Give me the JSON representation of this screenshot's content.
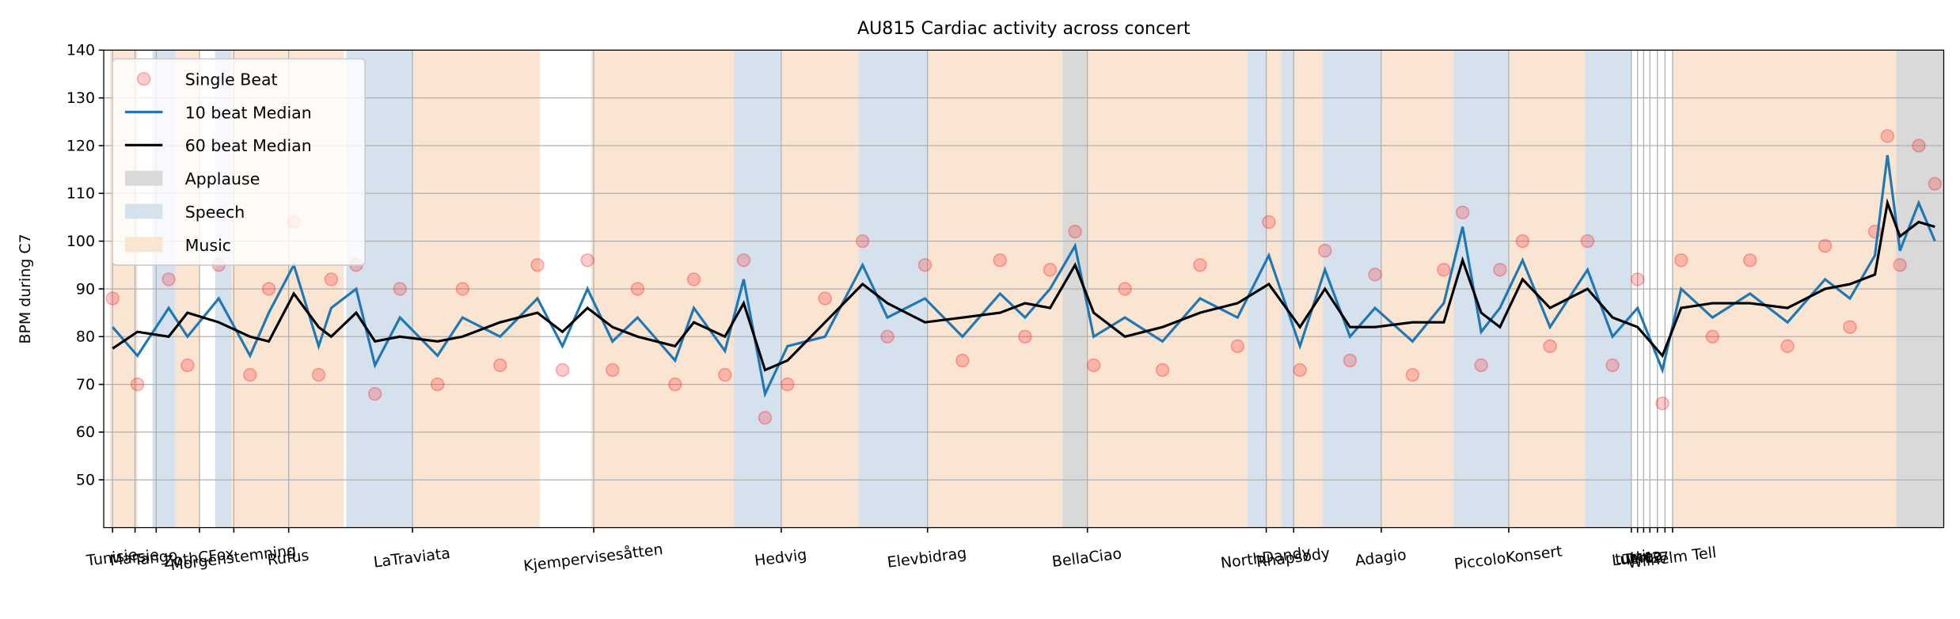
{
  "chart_data": {
    "type": "line",
    "title": "AU815 Cardiac activity across concert",
    "ylabel": "BPM during C7",
    "xlim": [
      0,
      1000
    ],
    "ylim": [
      40,
      140
    ],
    "yticks": [
      50,
      60,
      70,
      80,
      90,
      100,
      110,
      120,
      130,
      140
    ],
    "grid": true,
    "legend": "upper left",
    "xticks": [
      {
        "value": 4.8,
        "label": "Tunisie"
      },
      {
        "value": 17,
        "label": "Marsie"
      },
      {
        "value": 28.5,
        "label": "Tango"
      },
      {
        "value": 52,
        "label": "ZothCFox"
      },
      {
        "value": 70.7,
        "label": "Morgenstemning"
      },
      {
        "value": 100.5,
        "label": "Rufus"
      },
      {
        "value": 167.8,
        "label": "LaTraviata"
      },
      {
        "value": 266.3,
        "label": "Kjempervisesåtten"
      },
      {
        "value": 368.2,
        "label": "Hedvig"
      },
      {
        "value": 447.7,
        "label": "Elevbidrag"
      },
      {
        "value": 534.6,
        "label": "BellaCiao"
      },
      {
        "value": 631.8,
        "label": "NorthDandy"
      },
      {
        "value": 646.7,
        "label": "Rhapsody"
      },
      {
        "value": 694.3,
        "label": "Adagio"
      },
      {
        "value": 763.6,
        "label": "PiccoloKonsert"
      },
      {
        "value": 830.2,
        "label": "tutti"
      },
      {
        "value": 833.6,
        "label": "Lumeo"
      },
      {
        "value": 836.9,
        "label": "Tema"
      },
      {
        "value": 840.3,
        "label": "1"
      },
      {
        "value": 844.4,
        "label": "2"
      },
      {
        "value": 848.5,
        "label": "7"
      },
      {
        "value": 852.6,
        "label": "Wilhelm Tell"
      }
    ],
    "spans": [
      {
        "name": "Applause",
        "color": "#d9d9d9",
        "ranges": [
          [
            521.1,
            534.6
          ],
          [
            974.2,
            1000
          ]
        ]
      },
      {
        "name": "Speech",
        "color": "#d6e1ee",
        "ranges": [
          [
            26.5,
            38.7
          ],
          [
            60.5,
            69.3
          ],
          [
            131.8,
            167.8
          ],
          [
            342.4,
            368.2
          ],
          [
            410.3,
            447.7
          ],
          [
            621.6,
            631.8
          ],
          [
            640,
            646.7
          ],
          [
            662.4,
            694.3
          ],
          [
            733.7,
            763.6
          ],
          [
            805,
            830.2
          ]
        ]
      },
      {
        "name": "Music",
        "color": "#fae4d2",
        "ranges": [
          [
            3.4,
            18.3
          ],
          [
            38.7,
            52.3
          ],
          [
            69.3,
            130.4
          ],
          [
            167.8,
            237.1
          ],
          [
            264.9,
            342.4
          ],
          [
            368.2,
            410.3
          ],
          [
            447.7,
            521.1
          ],
          [
            534.6,
            621.6
          ],
          [
            631.8,
            640
          ],
          [
            646.7,
            662.4
          ],
          [
            694.3,
            733.7
          ],
          [
            763.6,
            805
          ],
          [
            852.6,
            974.2
          ]
        ]
      }
    ],
    "x": [
      4.8,
      18.3,
      35.3,
      45.5,
      62.5,
      79.5,
      89.7,
      103.3,
      116.8,
      123.6,
      137.2,
      147.4,
      161,
      181.4,
      195,
      215.4,
      235.7,
      249.3,
      262.9,
      276.5,
      290.1,
      310.5,
      320.7,
      337.6,
      347.8,
      359.4,
      371.6,
      392,
      412.4,
      425.9,
      446.3,
      466.7,
      487.1,
      500.7,
      514.3,
      527.9,
      538,
      555,
      575.4,
      595.8,
      616.2,
      633.2,
      650.1,
      663.7,
      677.3,
      690.9,
      711.3,
      728.3,
      738.5,
      748.6,
      758.8,
      771.1,
      786,
      806.4,
      820,
      833.6,
      847.1,
      857.3,
      874.3,
      894.7,
      915.1,
      935.5,
      949,
      962.6,
      969.4,
      976.2,
      986.4,
      995.2
    ],
    "series": [
      {
        "name": "Single Beat",
        "type": "scatter",
        "color": "#ff0000",
        "values": [
          88,
          70,
          92,
          74,
          95,
          72,
          90,
          104,
          72,
          92,
          95,
          68,
          90,
          70,
          90,
          74,
          95,
          73,
          96,
          73,
          90,
          70,
          92,
          72,
          96,
          63,
          70,
          88,
          100,
          80,
          95,
          75,
          96,
          80,
          94,
          102,
          74,
          90,
          73,
          95,
          78,
          104,
          73,
          98,
          75,
          93,
          72,
          94,
          106,
          74,
          94,
          100,
          78,
          100,
          74,
          92,
          66,
          96,
          80,
          96,
          78,
          99,
          82,
          102,
          122,
          95,
          120,
          112
        ]
      },
      {
        "name": "10 beat Median",
        "color": "#1f77b4",
        "values": [
          82,
          76,
          86,
          80,
          88,
          76,
          85,
          95,
          78,
          86,
          90,
          74,
          84,
          76,
          84,
          80,
          88,
          78,
          90,
          79,
          84,
          75,
          86,
          77,
          92,
          68,
          78,
          80,
          95,
          84,
          88,
          80,
          89,
          84,
          90,
          99,
          80,
          84,
          79,
          88,
          84,
          97,
          78,
          94,
          80,
          86,
          79,
          87,
          103,
          81,
          86,
          96,
          82,
          94,
          80,
          86,
          73,
          90,
          84,
          89,
          83,
          92,
          88,
          97,
          118,
          98,
          108,
          100
        ]
      },
      {
        "name": "60 beat Median",
        "color": "#000000",
        "values": [
          77.5,
          81,
          80,
          85,
          83,
          80,
          79,
          89,
          82,
          80,
          85,
          79,
          80,
          79,
          80,
          83,
          85,
          81,
          86,
          82,
          80,
          78,
          83,
          80,
          87,
          73,
          75,
          83,
          91,
          87,
          83,
          84,
          85,
          87,
          86,
          95,
          85,
          80,
          82,
          85,
          87,
          91,
          82,
          90,
          82,
          82,
          83,
          83,
          96,
          85,
          82,
          92,
          86,
          90,
          84,
          82,
          76,
          86,
          87,
          87,
          86,
          90,
          91,
          93,
          108,
          101,
          104,
          103
        ]
      }
    ]
  }
}
